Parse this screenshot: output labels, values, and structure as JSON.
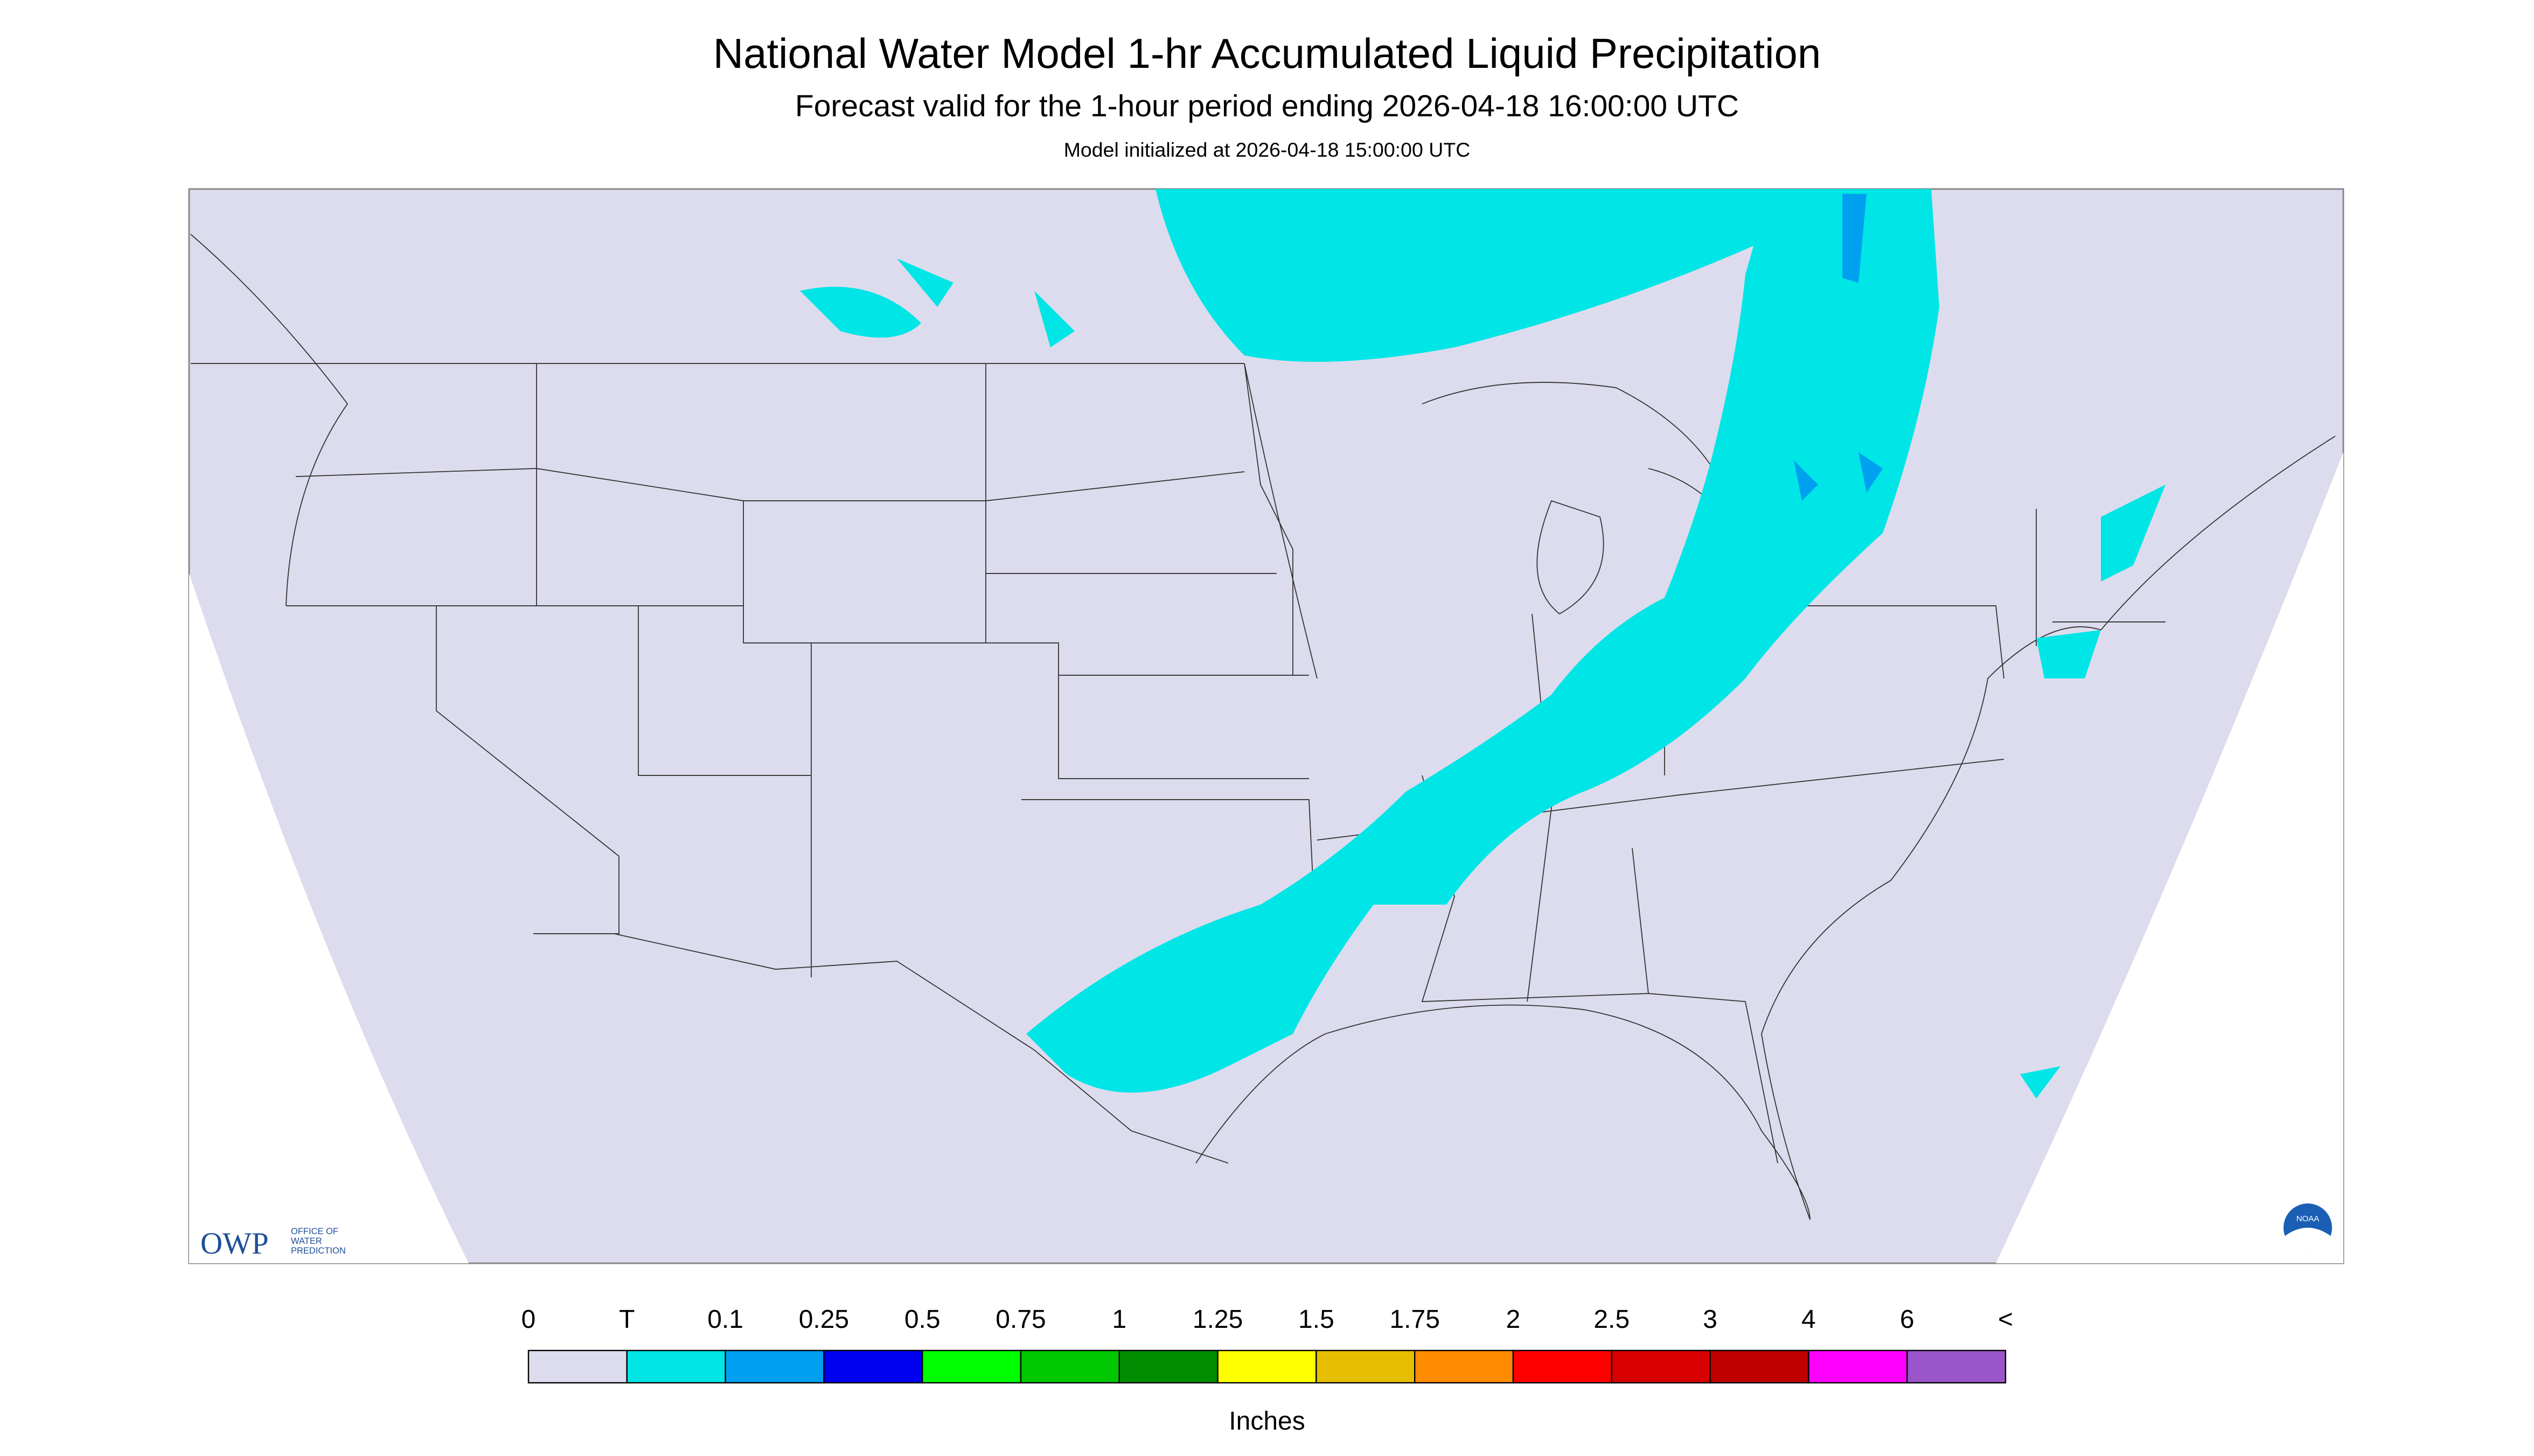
{
  "header": {
    "title": "National Water Model 1-hr Accumulated Liquid Precipitation",
    "subtitle": "Forecast valid for the 1-hour period ending 2026-04-18 16:00:00 UTC",
    "initialized": "Model initialized at 2026-04-18 15:00:00 UTC"
  },
  "legend": {
    "labels": [
      "0",
      "T",
      "0.1",
      "0.25",
      "0.5",
      "0.75",
      "1",
      "1.25",
      "1.5",
      "1.75",
      "2",
      "2.5",
      "3",
      "4",
      "6",
      "<"
    ],
    "colors": [
      "#dcdcee",
      "#00e5e5",
      "#00a0f0",
      "#0000f0",
      "#00ff00",
      "#00c800",
      "#008c00",
      "#ffff00",
      "#e6be00",
      "#ff8c00",
      "#ff0000",
      "#d80000",
      "#c00000",
      "#ff00ff",
      "#9955c9"
    ],
    "units": "Inches"
  },
  "logo": {
    "owp": "OWP",
    "line1": "OFFICE OF",
    "line2": "WATER",
    "line3": "PREDICTION",
    "noaa": "NOAA"
  }
}
